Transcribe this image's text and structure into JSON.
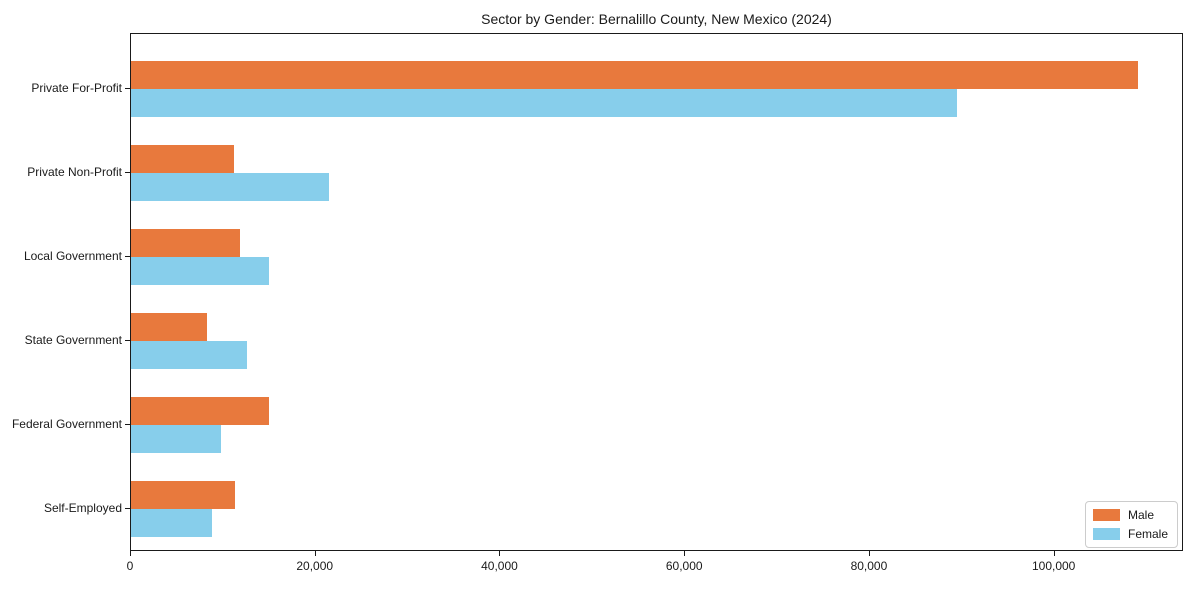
{
  "chart_data": {
    "type": "bar",
    "orientation": "horizontal",
    "title": "Sector by Gender: Bernalillo County, New Mexico (2024)",
    "categories": [
      "Private For-Profit",
      "Private Non-Profit",
      "Local Government",
      "State Government",
      "Federal Government",
      "Self-Employed"
    ],
    "series": [
      {
        "name": "Male",
        "color": "#E8793D",
        "values": [
          109000,
          11100,
          11750,
          8200,
          14900,
          11300
        ]
      },
      {
        "name": "Female",
        "color": "#87CEEB",
        "values": [
          89400,
          21400,
          14900,
          12600,
          9700,
          8800
        ]
      }
    ],
    "xlim": [
      0,
      114000
    ],
    "xticks": [
      0,
      20000,
      40000,
      60000,
      80000,
      100000
    ],
    "xtick_labels": [
      "0",
      "20,000",
      "40,000",
      "60,000",
      "80,000",
      "100,000"
    ],
    "xlabel": "",
    "ylabel": "",
    "grid": false,
    "legend": {
      "position": "lower right",
      "entries": [
        "Male",
        "Female"
      ]
    }
  }
}
